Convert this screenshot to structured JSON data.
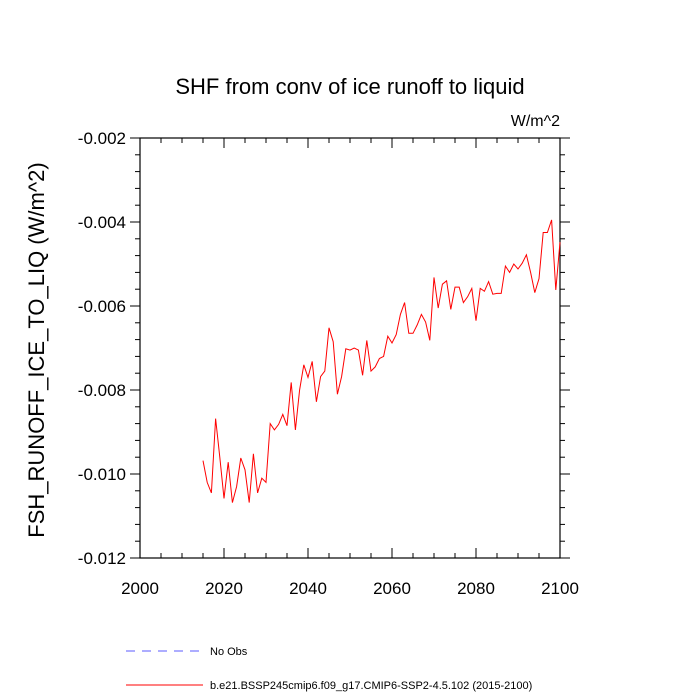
{
  "chart_data": {
    "type": "line",
    "title": "SHF from conv of ice runoff to liquid",
    "units": "W/m^2",
    "ylabel": "FSH_RUNOFF_ICE_TO_LIQ  (W/m^2)",
    "xlabel": "",
    "xlim": [
      2000,
      2100
    ],
    "ylim": [
      -0.012,
      -0.002
    ],
    "x_ticks": [
      2000,
      2020,
      2040,
      2060,
      2080,
      2100
    ],
    "x_tick_labels": [
      "2000",
      "2020",
      "2040",
      "2060",
      "2080",
      "2100"
    ],
    "y_ticks": [
      -0.012,
      -0.01,
      -0.008,
      -0.006,
      -0.004,
      -0.002
    ],
    "y_tick_labels": [
      "-0.012",
      "-0.010",
      "-0.008",
      "-0.006",
      "-0.004",
      "-0.002"
    ],
    "grid": false,
    "legend_position": "bottom",
    "series": [
      {
        "name": "b.e21.BSSP245cmip6.f09_g17.CMIP6-SSP2-4.5.102 (2015-2100)",
        "color": "#ff0000",
        "style": "solid",
        "x": [
          2015,
          2016,
          2017,
          2018,
          2019,
          2020,
          2021,
          2022,
          2023,
          2024,
          2025,
          2026,
          2027,
          2028,
          2029,
          2030,
          2031,
          2032,
          2033,
          2034,
          2035,
          2036,
          2037,
          2038,
          2039,
          2040,
          2041,
          2042,
          2043,
          2044,
          2045,
          2046,
          2047,
          2048,
          2049,
          2050,
          2051,
          2052,
          2053,
          2054,
          2055,
          2056,
          2057,
          2058,
          2059,
          2060,
          2061,
          2062,
          2063,
          2064,
          2065,
          2066,
          2067,
          2068,
          2069,
          2070,
          2071,
          2072,
          2073,
          2074,
          2075,
          2076,
          2077,
          2078,
          2079,
          2080,
          2081,
          2082,
          2083,
          2084,
          2085,
          2086,
          2087,
          2088,
          2089,
          2090,
          2091,
          2092,
          2093,
          2094,
          2095,
          2096,
          2097,
          2098,
          2099,
          2100
        ],
        "values": [
          -0.00968,
          -0.0102,
          -0.01045,
          -0.00868,
          -0.0096,
          -0.01058,
          -0.00972,
          -0.01068,
          -0.0103,
          -0.00962,
          -0.0099,
          -0.01068,
          -0.00952,
          -0.01045,
          -0.0101,
          -0.0102,
          -0.0088,
          -0.00895,
          -0.00882,
          -0.00858,
          -0.00885,
          -0.00782,
          -0.00895,
          -0.008,
          -0.0074,
          -0.0077,
          -0.00732,
          -0.00828,
          -0.00768,
          -0.00755,
          -0.00652,
          -0.00685,
          -0.0081,
          -0.00768,
          -0.00702,
          -0.00705,
          -0.007,
          -0.00705,
          -0.00765,
          -0.00682,
          -0.00755,
          -0.00745,
          -0.00725,
          -0.0072,
          -0.00672,
          -0.00688,
          -0.00668,
          -0.0062,
          -0.00592,
          -0.00665,
          -0.00665,
          -0.00645,
          -0.0062,
          -0.00638,
          -0.00682,
          -0.00532,
          -0.00605,
          -0.00548,
          -0.0054,
          -0.00608,
          -0.00555,
          -0.00555,
          -0.00592,
          -0.00578,
          -0.00558,
          -0.00635,
          -0.00558,
          -0.00565,
          -0.00542,
          -0.00572,
          -0.0057,
          -0.0057,
          -0.00505,
          -0.0052,
          -0.005,
          -0.00512,
          -0.00498,
          -0.00478,
          -0.0052,
          -0.00568,
          -0.00535,
          -0.00425,
          -0.00425,
          -0.00395,
          -0.00562,
          -0.00448
        ]
      }
    ],
    "legend": [
      {
        "label": "No Obs",
        "color": "#5b5bff",
        "style": "dashed"
      },
      {
        "label": "b.e21.BSSP245cmip6.f09_g17.CMIP6-SSP2-4.5.102 (2015-2100)",
        "color": "#ff0000",
        "style": "solid"
      }
    ]
  }
}
